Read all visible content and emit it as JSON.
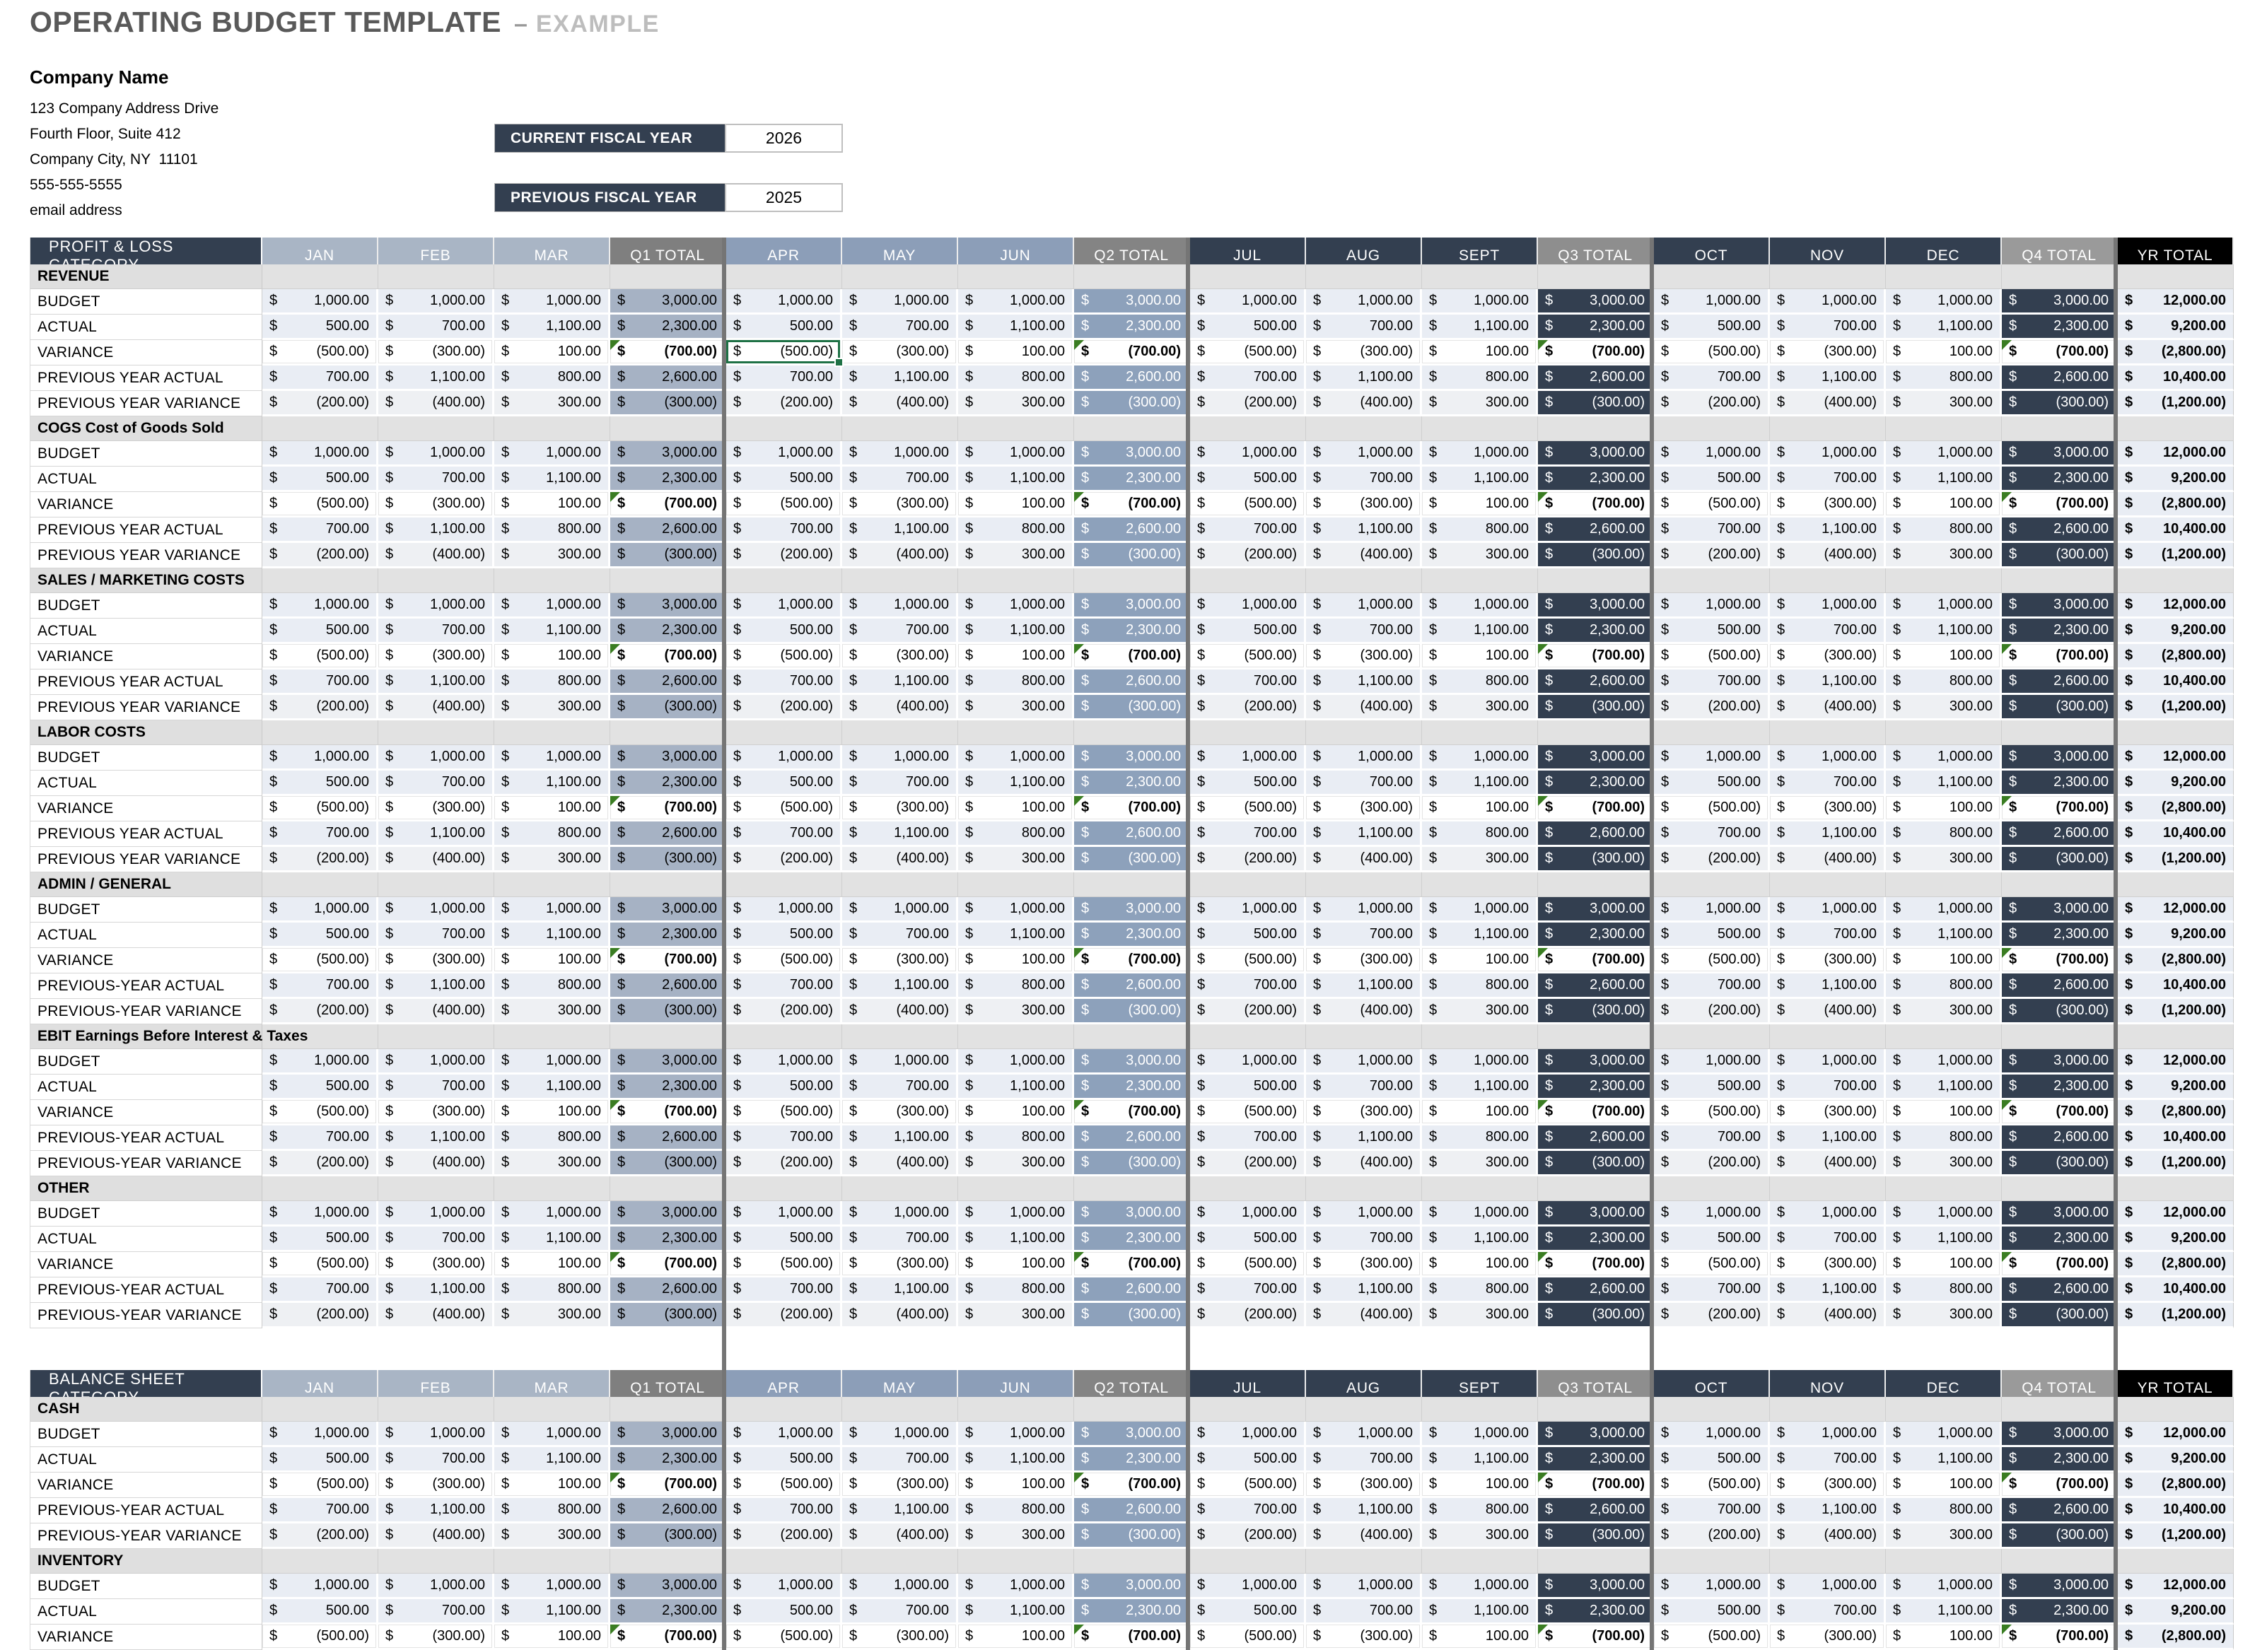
{
  "page": {
    "title": "OPERATING BUDGET TEMPLATE",
    "title_dash": "–",
    "title_suffix": "EXAMPLE"
  },
  "company": {
    "name": "Company Name",
    "address_lines": [
      "123 Company Address Drive",
      "Fourth Floor, Suite 412",
      "Company City, NY  11101",
      "555-555-5555",
      "email address"
    ]
  },
  "fiscal": {
    "current_label": "CURRENT FISCAL YEAR",
    "current_value": "2026",
    "previous_label": "PREVIOUS FISCAL YEAR",
    "previous_value": "2025"
  },
  "currency_symbol": "$",
  "columns": [
    "JAN",
    "FEB",
    "MAR",
    "Q1 TOTAL",
    "APR",
    "MAY",
    "JUN",
    "Q2 TOTAL",
    "JUL",
    "AUG",
    "SEPT",
    "Q3 TOTAL",
    "OCT",
    "NOV",
    "DEC",
    "Q4 TOTAL",
    "YR TOTAL"
  ],
  "value_rows": {
    "budget": [
      "1,000.00",
      "1,000.00",
      "1,000.00",
      "3,000.00",
      "1,000.00",
      "1,000.00",
      "1,000.00",
      "3,000.00",
      "1,000.00",
      "1,000.00",
      "1,000.00",
      "3,000.00",
      "1,000.00",
      "1,000.00",
      "1,000.00",
      "3,000.00",
      "12,000.00"
    ],
    "actual": [
      "500.00",
      "700.00",
      "1,100.00",
      "2,300.00",
      "500.00",
      "700.00",
      "1,100.00",
      "2,300.00",
      "500.00",
      "700.00",
      "1,100.00",
      "2,300.00",
      "500.00",
      "700.00",
      "1,100.00",
      "2,300.00",
      "9,200.00"
    ],
    "variance": [
      "(500.00)",
      "(300.00)",
      "100.00",
      "(700.00)",
      "(500.00)",
      "(300.00)",
      "100.00",
      "(700.00)",
      "(500.00)",
      "(300.00)",
      "100.00",
      "(700.00)",
      "(500.00)",
      "(300.00)",
      "100.00",
      "(700.00)",
      "(2,800.00)"
    ],
    "prev_actual": [
      "700.00",
      "1,100.00",
      "800.00",
      "2,600.00",
      "700.00",
      "1,100.00",
      "800.00",
      "2,600.00",
      "700.00",
      "1,100.00",
      "800.00",
      "2,600.00",
      "700.00",
      "1,100.00",
      "800.00",
      "2,600.00",
      "10,400.00"
    ],
    "prev_variance": [
      "(200.00)",
      "(400.00)",
      "300.00",
      "(300.00)",
      "(200.00)",
      "(400.00)",
      "300.00",
      "(300.00)",
      "(200.00)",
      "(400.00)",
      "300.00",
      "(300.00)",
      "(200.00)",
      "(400.00)",
      "300.00",
      "(300.00)",
      "(1,200.00)"
    ]
  },
  "tables": [
    {
      "header_label": "PROFIT & LOSS CATEGORY",
      "sections": [
        {
          "name": "REVENUE",
          "rows": [
            {
              "label": "BUDGET",
              "kind": "budget"
            },
            {
              "label": "ACTUAL",
              "kind": "actual"
            },
            {
              "label": "VARIANCE",
              "kind": "variance"
            },
            {
              "label": "PREVIOUS YEAR ACTUAL",
              "kind": "prev_actual"
            },
            {
              "label": "PREVIOUS YEAR VARIANCE",
              "kind": "prev_variance"
            }
          ]
        },
        {
          "name": "COGS Cost of Goods Sold",
          "rows": [
            {
              "label": "BUDGET",
              "kind": "budget"
            },
            {
              "label": "ACTUAL",
              "kind": "actual"
            },
            {
              "label": "VARIANCE",
              "kind": "variance"
            },
            {
              "label": "PREVIOUS YEAR ACTUAL",
              "kind": "prev_actual"
            },
            {
              "label": "PREVIOUS YEAR VARIANCE",
              "kind": "prev_variance"
            }
          ]
        },
        {
          "name": "SALES / MARKETING COSTS",
          "rows": [
            {
              "label": "BUDGET",
              "kind": "budget"
            },
            {
              "label": "ACTUAL",
              "kind": "actual"
            },
            {
              "label": "VARIANCE",
              "kind": "variance"
            },
            {
              "label": "PREVIOUS YEAR ACTUAL",
              "kind": "prev_actual"
            },
            {
              "label": "PREVIOUS YEAR VARIANCE",
              "kind": "prev_variance"
            }
          ]
        },
        {
          "name": "LABOR COSTS",
          "rows": [
            {
              "label": "BUDGET",
              "kind": "budget"
            },
            {
              "label": "ACTUAL",
              "kind": "actual"
            },
            {
              "label": "VARIANCE",
              "kind": "variance"
            },
            {
              "label": "PREVIOUS YEAR ACTUAL",
              "kind": "prev_actual"
            },
            {
              "label": "PREVIOUS YEAR VARIANCE",
              "kind": "prev_variance"
            }
          ]
        },
        {
          "name": "ADMIN / GENERAL",
          "rows": [
            {
              "label": "BUDGET",
              "kind": "budget"
            },
            {
              "label": "ACTUAL",
              "kind": "actual"
            },
            {
              "label": "VARIANCE",
              "kind": "variance"
            },
            {
              "label": "PREVIOUS-YEAR ACTUAL",
              "kind": "prev_actual"
            },
            {
              "label": "PREVIOUS-YEAR VARIANCE",
              "kind": "prev_variance"
            }
          ]
        },
        {
          "name": "EBIT Earnings Before Interest & Taxes",
          "rows": [
            {
              "label": "BUDGET",
              "kind": "budget"
            },
            {
              "label": "ACTUAL",
              "kind": "actual"
            },
            {
              "label": "VARIANCE",
              "kind": "variance"
            },
            {
              "label": "PREVIOUS-YEAR ACTUAL",
              "kind": "prev_actual"
            },
            {
              "label": "PREVIOUS-YEAR VARIANCE",
              "kind": "prev_variance"
            }
          ]
        },
        {
          "name": "OTHER",
          "rows": [
            {
              "label": "BUDGET",
              "kind": "budget"
            },
            {
              "label": "ACTUAL",
              "kind": "actual"
            },
            {
              "label": "VARIANCE",
              "kind": "variance"
            },
            {
              "label": "PREVIOUS-YEAR ACTUAL",
              "kind": "prev_actual"
            },
            {
              "label": "PREVIOUS-YEAR VARIANCE",
              "kind": "prev_variance"
            }
          ]
        }
      ]
    },
    {
      "header_label": "BALANCE SHEET CATEGORY",
      "sections": [
        {
          "name": "CASH",
          "rows": [
            {
              "label": "BUDGET",
              "kind": "budget"
            },
            {
              "label": "ACTUAL",
              "kind": "actual"
            },
            {
              "label": "VARIANCE",
              "kind": "variance"
            },
            {
              "label": "PREVIOUS-YEAR ACTUAL",
              "kind": "prev_actual"
            },
            {
              "label": "PREVIOUS-YEAR VARIANCE",
              "kind": "prev_variance"
            }
          ]
        },
        {
          "name": "INVENTORY",
          "rows": [
            {
              "label": "BUDGET",
              "kind": "budget"
            },
            {
              "label": "ACTUAL",
              "kind": "actual"
            },
            {
              "label": "VARIANCE",
              "kind": "variance"
            }
          ]
        }
      ]
    }
  ],
  "selection": {
    "table_index": 0,
    "section_index": 0,
    "row_index": 2,
    "column_index": 4
  },
  "colors": {
    "header_navy": "#333F50",
    "q1_month_header": "#A9B5C5",
    "q2_month_header": "#8C9EB8",
    "quarter_total_header_gray": "#858585",
    "yr_total_header": "#000000",
    "q1_total_cell": "#A6B2C4",
    "q2_total_cell": "#8DA1BB",
    "q3_q4_total_cell": "#333F50",
    "row_tint": "#E9EDF4",
    "row_tint_alt": "#EEF0F3",
    "section_band": "#E2E2E2",
    "selection_green": "#1E7145",
    "variance_flag_green": "#3A7D22",
    "page_break_gray": "#757575"
  }
}
